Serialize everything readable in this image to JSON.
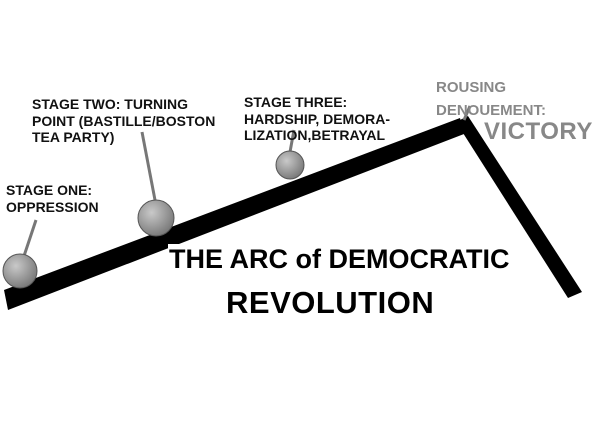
{
  "stages": [
    {
      "lines": [
        "STAGE ONE:",
        "OPPRESSION"
      ]
    },
    {
      "lines": [
        "STAGE TWO: TURNING",
        "POINT (BASTILLE/BOSTON",
        "TEA PARTY)"
      ]
    },
    {
      "lines": [
        "STAGE THREE:",
        "HARDSHIP, DEMORA-",
        "LIZATION,BETRAYAL"
      ]
    }
  ],
  "denouement": {
    "lines": [
      "ROUSING",
      "DENOUEMENT:"
    ],
    "victory": "VICTORY"
  },
  "title": {
    "line1": "THE ARC of DEMOCRATIC",
    "line2": "REVOLUTION"
  },
  "colors": {
    "arc": "#000000",
    "marker": "#9a9a9a",
    "denouement_text": "#888888"
  }
}
